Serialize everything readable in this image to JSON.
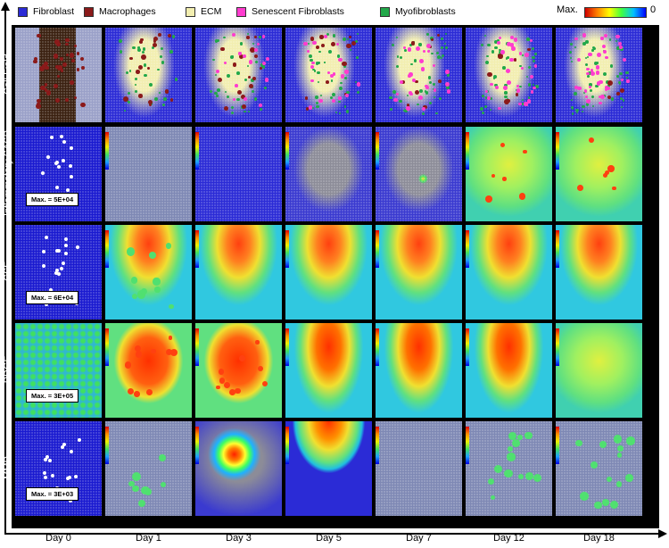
{
  "legend": {
    "items": [
      {
        "label": "Fibroblast",
        "color": "#2b2bd6"
      },
      {
        "label": "Macrophages",
        "color": "#8b1a1a"
      },
      {
        "label": "ECM",
        "color": "#f2eeb0"
      },
      {
        "label": "Senescent Fibroblasts",
        "color": "#ff3ccf"
      },
      {
        "label": "Myofibroblasts",
        "color": "#22a84a"
      }
    ],
    "colorbar_max_label": "Max.",
    "colorbar_min_label": "0"
  },
  "rows": [
    {
      "label": "Cell Field",
      "max_label": ""
    },
    {
      "label": "Inflammatory SASP",
      "max_label": "Max. = 5E+04"
    },
    {
      "label": "CSF",
      "max_label": "Max. = 6E+04"
    },
    {
      "label": "PDGF",
      "max_label": "Max. = 3E+05"
    },
    {
      "label": "MMP",
      "max_label": "Max. = 3E+03"
    }
  ],
  "columns": [
    "Day 0",
    "Day 1",
    "Day 3",
    "Day 5",
    "Day 7",
    "Day 12",
    "Day 18"
  ],
  "colors": {
    "fibroblast_blue": "#2b2bd6",
    "gray_field": "#8a8a9a",
    "heat_red": "#e02000",
    "heat_yellow": "#e8f020",
    "heat_green": "#50e070",
    "heat_cyan": "#30c8e0"
  }
}
